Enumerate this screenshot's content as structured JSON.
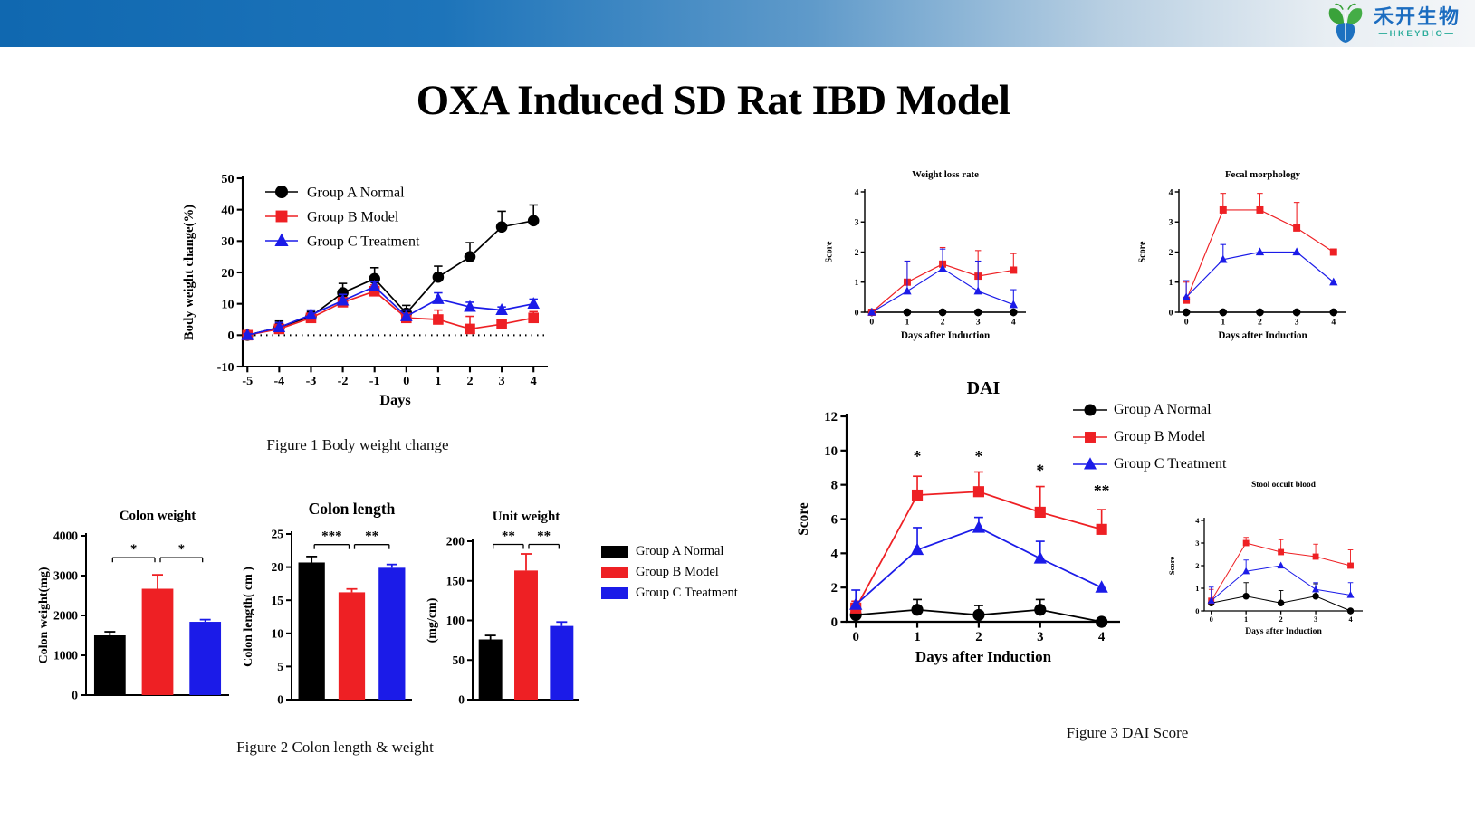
{
  "header": {
    "company_cn": "禾开生物",
    "company_en": "—HKEYBIO—"
  },
  "title": "OXA Induced SD Rat IBD Model",
  "captions": {
    "fig1": "Figure 1 Body  weight change",
    "fig2": "Figure 2 Colon length & weight",
    "fig3": "Figure 3 DAI Score"
  },
  "colors": {
    "black": "#000000",
    "red": "#ee2024",
    "blue": "#1b1be8",
    "header_blue": "#1068b0",
    "logo_green": "#3aa23a",
    "logo_blue": "#1d71c0",
    "logo_teal": "#2ead9c"
  },
  "groups": [
    {
      "name": "Group A Normal",
      "color": "#000000",
      "marker": "circle"
    },
    {
      "name": "Group B Model",
      "color": "#ee2024",
      "marker": "square"
    },
    {
      "name": "Group C Treatment",
      "color": "#1b1be8",
      "marker": "triangle"
    }
  ],
  "chart_data": [
    {
      "id": "body-weight",
      "type": "line",
      "title": "",
      "xlabel": "Days",
      "ylabel": "Body weight change(%)",
      "xlim": [
        -5.15,
        4.45
      ],
      "ylim": [
        -10,
        50
      ],
      "xticks": [
        -5,
        -4,
        -3,
        -2,
        -1,
        0,
        1,
        2,
        3,
        4
      ],
      "yticks": [
        -10,
        0,
        10,
        20,
        30,
        40,
        50
      ],
      "zero_dotted": true,
      "legend": "inside",
      "x": [
        -5,
        -4,
        -3,
        -2,
        -1,
        0,
        1,
        2,
        3,
        4
      ],
      "series": [
        {
          "name": "Group A Normal",
          "group": 0,
          "values": [
            0,
            2.5,
            6,
            13.5,
            18,
            7,
            18.5,
            25,
            34.5,
            36.5
          ],
          "err": [
            0.5,
            2,
            1.5,
            3,
            3.5,
            2.5,
            3.5,
            4.5,
            5,
            5
          ]
        },
        {
          "name": "Group B Model",
          "group": 1,
          "values": [
            0,
            2,
            5.5,
            10.5,
            14,
            5.5,
            5,
            2,
            3.5,
            5.5
          ],
          "err": [
            0.5,
            1,
            1.5,
            1.5,
            2,
            1.5,
            3,
            4,
            1.5,
            2
          ]
        },
        {
          "name": "Group C Treatment",
          "group": 2,
          "values": [
            0,
            2.5,
            6.5,
            11,
            15.5,
            6,
            11.5,
            9,
            8,
            10
          ],
          "err": [
            0.5,
            1.5,
            1.5,
            2,
            1.5,
            2,
            2,
            1.5,
            1,
            1.5
          ]
        }
      ]
    },
    {
      "id": "colon-weight",
      "type": "bar",
      "title": "Colon weight",
      "ylabel": "Colon weight(mg)",
      "ylim": [
        0,
        4000
      ],
      "yticks": [
        0,
        1000,
        2000,
        3000,
        4000
      ],
      "categories": [
        "Group A Normal",
        "Group B Model",
        "Group C Treatment"
      ],
      "values": [
        1500,
        2670,
        1840
      ],
      "err": [
        90,
        350,
        55
      ],
      "sig": [
        {
          "a": 0,
          "b": 1,
          "y": 3450,
          "label": "*"
        },
        {
          "a": 1,
          "b": 2,
          "y": 3450,
          "label": "*"
        }
      ]
    },
    {
      "id": "colon-length",
      "type": "bar",
      "title": "Colon length",
      "title_fs": 17.5,
      "ylabel": "Colon length( cm )",
      "ylim": [
        0,
        25
      ],
      "yticks": [
        0,
        5,
        10,
        15,
        20,
        25
      ],
      "categories": [
        "Group A Normal",
        "Group B Model",
        "Group C Treatment"
      ],
      "values": [
        20.7,
        16.2,
        19.9
      ],
      "err": [
        0.9,
        0.5,
        0.5
      ],
      "sig": [
        {
          "a": 0,
          "b": 1,
          "y": 23.4,
          "label": "***"
        },
        {
          "a": 1,
          "b": 2,
          "y": 23.4,
          "label": "**"
        }
      ]
    },
    {
      "id": "unit-weight",
      "type": "bar",
      "title": "Unit weight",
      "ylabel": "(mg/cm)",
      "ylim": [
        0,
        200
      ],
      "yticks": [
        0,
        50,
        100,
        150,
        200
      ],
      "categories": [
        "Group A Normal",
        "Group B Model",
        "Group C Treatment"
      ],
      "values": [
        76,
        163,
        93
      ],
      "err": [
        5,
        21,
        5
      ],
      "sig": [
        {
          "a": 0,
          "b": 1,
          "y": 196,
          "label": "**"
        },
        {
          "a": 1,
          "b": 2,
          "y": 196,
          "label": "**"
        }
      ]
    },
    {
      "id": "weight-loss",
      "type": "line",
      "title": "Weight loss rate",
      "xlabel": "Days after Induction",
      "ylabel": "Score",
      "xlim": [
        -0.2,
        4.35
      ],
      "ylim": [
        0,
        4
      ],
      "xticks": [
        0,
        1,
        2,
        3,
        4
      ],
      "yticks": [
        0,
        1,
        2,
        3,
        4
      ],
      "x": [
        0,
        1,
        2,
        3,
        4
      ],
      "series": [
        {
          "name": "Group A Normal",
          "group": 0,
          "values": [
            0,
            0,
            0,
            0,
            0
          ],
          "err": [
            0,
            0,
            0,
            0,
            0
          ]
        },
        {
          "name": "Group B Model",
          "group": 1,
          "values": [
            0,
            1.0,
            1.6,
            1.2,
            1.4
          ],
          "err": [
            0,
            0.7,
            0.55,
            0.85,
            0.55
          ]
        },
        {
          "name": "Group C Treatment",
          "group": 2,
          "values": [
            0,
            0.7,
            1.45,
            0.7,
            0.25
          ],
          "err": [
            0,
            1.0,
            0.65,
            1.0,
            0.5
          ]
        }
      ]
    },
    {
      "id": "fecal",
      "type": "line",
      "title": "Fecal morphology",
      "xlabel": "Days after Induction",
      "ylabel": "Score",
      "xlim": [
        -0.2,
        4.35
      ],
      "ylim": [
        0,
        4
      ],
      "xticks": [
        0,
        1,
        2,
        3,
        4
      ],
      "yticks": [
        0,
        1,
        2,
        3,
        4
      ],
      "x": [
        0,
        1,
        2,
        3,
        4
      ],
      "series": [
        {
          "name": "Group A Normal",
          "group": 0,
          "values": [
            0,
            0,
            0,
            0,
            0
          ],
          "err": [
            0,
            0,
            0,
            0,
            0
          ]
        },
        {
          "name": "Group B Model",
          "group": 1,
          "values": [
            0.4,
            3.4,
            3.4,
            2.8,
            2.0
          ],
          "err": [
            0.6,
            0.55,
            0.55,
            0.85,
            0
          ]
        },
        {
          "name": "Group C Treatment",
          "group": 2,
          "values": [
            0.5,
            1.75,
            2.0,
            2.0,
            1.0
          ],
          "err": [
            0.55,
            0.5,
            0,
            0,
            0
          ]
        }
      ]
    },
    {
      "id": "dai",
      "type": "line",
      "title": "DAI",
      "title_fs": 20,
      "xlabel": "Days after Induction",
      "ylabel": "Score",
      "xlim": [
        -0.15,
        4.3
      ],
      "ylim": [
        0,
        12
      ],
      "xticks": [
        0,
        1,
        2,
        3,
        4
      ],
      "yticks": [
        0,
        2,
        4,
        6,
        8,
        10,
        12
      ],
      "x": [
        0,
        1,
        2,
        3,
        4
      ],
      "series": [
        {
          "name": "Group A Normal",
          "group": 0,
          "values": [
            0.4,
            0.7,
            0.4,
            0.7,
            0
          ],
          "err": [
            0.45,
            0.6,
            0.55,
            0.6,
            0
          ]
        },
        {
          "name": "Group B Model",
          "group": 1,
          "values": [
            0.8,
            7.4,
            7.6,
            6.4,
            5.4
          ],
          "err": [
            0.4,
            1.1,
            1.15,
            1.5,
            1.15
          ]
        },
        {
          "name": "Group C Treatment",
          "group": 2,
          "values": [
            1.0,
            4.2,
            5.5,
            3.7,
            2.0
          ],
          "err": [
            0.85,
            1.3,
            0.6,
            1.0,
            0
          ]
        }
      ],
      "annotations": [
        {
          "x": 1,
          "y": 9.35,
          "text": "*"
        },
        {
          "x": 2,
          "y": 9.35,
          "text": "*"
        },
        {
          "x": 3,
          "y": 8.55,
          "text": "*"
        },
        {
          "x": 4,
          "y": 7.35,
          "text": "**"
        }
      ]
    },
    {
      "id": "stool",
      "type": "line",
      "title": "Stool occult blood",
      "xlabel": "Days after Induction",
      "ylabel": "Score",
      "xlim": [
        -0.2,
        4.35
      ],
      "ylim": [
        0,
        4
      ],
      "xticks": [
        0,
        1,
        2,
        3,
        4
      ],
      "yticks": [
        0,
        1,
        2,
        3,
        4
      ],
      "x": [
        0,
        1,
        2,
        3,
        4
      ],
      "series": [
        {
          "name": "Group A Normal",
          "group": 0,
          "values": [
            0.35,
            0.65,
            0.35,
            0.65,
            0
          ],
          "err": [
            0,
            0.6,
            0.55,
            0.55,
            0
          ]
        },
        {
          "name": "Group B Model",
          "group": 1,
          "values": [
            0.45,
            3.0,
            2.6,
            2.4,
            2.0
          ],
          "err": [
            0.5,
            0.25,
            0.55,
            0.55,
            0.7
          ]
        },
        {
          "name": "Group C Treatment",
          "group": 2,
          "values": [
            0.45,
            1.75,
            2.0,
            0.95,
            0.7
          ],
          "err": [
            0.6,
            0.5,
            0,
            0.3,
            0.55
          ]
        }
      ]
    }
  ]
}
